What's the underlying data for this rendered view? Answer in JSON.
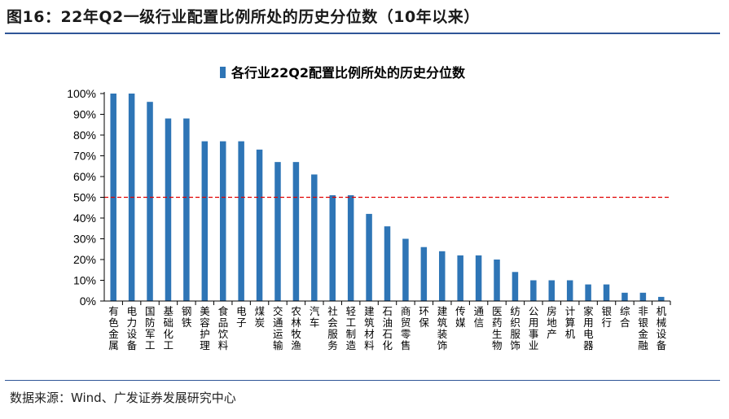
{
  "figure": {
    "title": "图16：22年Q2一级行业配置比例所处的历史分位数（10年以来）",
    "source": "数据来源：Wind、广发证券发展研究中心"
  },
  "colors": {
    "bar": "#2e75b6",
    "reference_line": "#e00000",
    "rule": "#2f5597"
  },
  "chart_data": {
    "type": "bar",
    "title": "",
    "xlabel": "",
    "ylabel": "",
    "ylim": [
      0,
      100
    ],
    "yticks": [
      "0%",
      "10%",
      "20%",
      "30%",
      "40%",
      "50%",
      "60%",
      "70%",
      "80%",
      "90%",
      "100%"
    ],
    "legend": {
      "label": "各行业22Q2配置比例所处的历史分位数",
      "position": "top-center"
    },
    "reference_line": {
      "value": 50,
      "style": "dashed"
    },
    "categories": [
      "有色金属",
      "电力设备",
      "国防军工",
      "基础化工",
      "钢铁",
      "美容护理",
      "食品饮料",
      "电子",
      "煤炭",
      "交通运输",
      "农林牧渔",
      "汽车",
      "社会服务",
      "轻工制造",
      "建筑材料",
      "石油石化",
      "商贸零售",
      "环保",
      "建筑装饰",
      "传媒",
      "通信",
      "医药生物",
      "纺织服饰",
      "公用事业",
      "房地产",
      "计算机",
      "家用电器",
      "银行",
      "综合",
      "非银金融",
      "机械设备"
    ],
    "series": [
      {
        "name": "各行业22Q2配置比例所处的历史分位数",
        "values": [
          100,
          100,
          96,
          88,
          88,
          77,
          77,
          77,
          73,
          67,
          67,
          61,
          51,
          51,
          42,
          36,
          30,
          26,
          24,
          22,
          22,
          20,
          14,
          10,
          10,
          10,
          8,
          8,
          4,
          4,
          2
        ]
      }
    ]
  }
}
